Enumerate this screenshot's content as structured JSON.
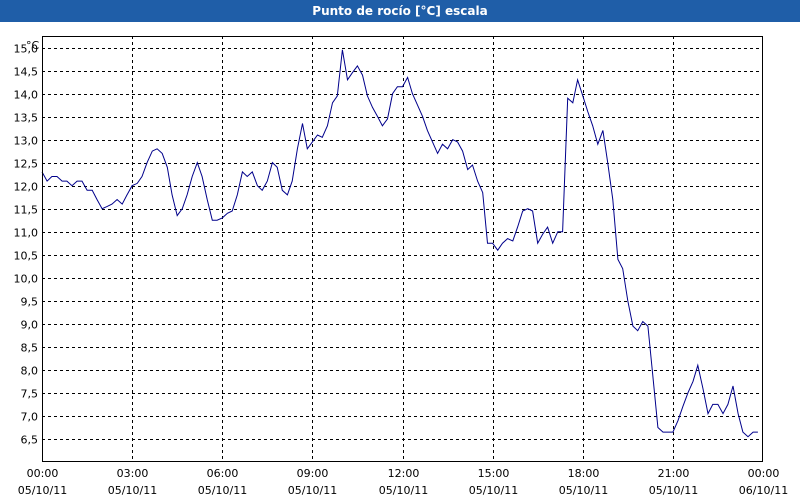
{
  "window": {
    "title": "Punto de rocío [°C] escala"
  },
  "chart_data": {
    "type": "line",
    "title": "Punto de rocío [°C] escala",
    "ylabel": "°C",
    "xlabel": "",
    "ylim": [
      6.0,
      15.25
    ],
    "xlim": [
      0,
      24
    ],
    "grid": true,
    "yticks": [
      "6,5",
      "7,0",
      "7,5",
      "8,0",
      "8,5",
      "9,0",
      "9,5",
      "10,0",
      "10,5",
      "11,0",
      "11,5",
      "12,0",
      "12,5",
      "13,0",
      "13,5",
      "14,0",
      "14,5",
      "15,0"
    ],
    "xticks": [
      {
        "time": "00:00",
        "date": "05/10/11"
      },
      {
        "time": "03:00",
        "date": "05/10/11"
      },
      {
        "time": "06:00",
        "date": "05/10/11"
      },
      {
        "time": "09:00",
        "date": "05/10/11"
      },
      {
        "time": "12:00",
        "date": "05/10/11"
      },
      {
        "time": "15:00",
        "date": "05/10/11"
      },
      {
        "time": "18:00",
        "date": "05/10/11"
      },
      {
        "time": "21:00",
        "date": "05/10/11"
      },
      {
        "time": "00:00",
        "date": "06/10/11"
      }
    ],
    "series": [
      {
        "color": "#00008b",
        "x": [
          0.0,
          0.17,
          0.33,
          0.5,
          0.67,
          0.83,
          1.0,
          1.17,
          1.33,
          1.5,
          1.67,
          1.83,
          2.0,
          2.17,
          2.33,
          2.5,
          2.67,
          2.83,
          3.0,
          3.17,
          3.33,
          3.5,
          3.67,
          3.83,
          4.0,
          4.17,
          4.33,
          4.5,
          4.67,
          4.83,
          5.0,
          5.17,
          5.33,
          5.5,
          5.67,
          5.83,
          6.0,
          6.17,
          6.33,
          6.5,
          6.67,
          6.83,
          7.0,
          7.17,
          7.33,
          7.5,
          7.67,
          7.83,
          8.0,
          8.17,
          8.33,
          8.5,
          8.67,
          8.83,
          9.0,
          9.17,
          9.33,
          9.5,
          9.67,
          9.83,
          10.0,
          10.17,
          10.33,
          10.5,
          10.67,
          10.83,
          11.0,
          11.17,
          11.33,
          11.5,
          11.67,
          11.83,
          12.0,
          12.17,
          12.33,
          12.5,
          12.67,
          12.83,
          13.0,
          13.17,
          13.33,
          13.5,
          13.67,
          13.83,
          14.0,
          14.17,
          14.33,
          14.5,
          14.67,
          14.83,
          15.0,
          15.17,
          15.33,
          15.5,
          15.67,
          15.83,
          16.0,
          16.17,
          16.33,
          16.5,
          16.67,
          16.83,
          17.0,
          17.17,
          17.33,
          17.5,
          17.67,
          17.83,
          18.0,
          18.17,
          18.33,
          18.5,
          18.67,
          18.83,
          19.0,
          19.17,
          19.33,
          19.5,
          19.67,
          19.83,
          20.0,
          20.17,
          20.33,
          20.5,
          20.67,
          20.83,
          21.0,
          21.17,
          21.33,
          21.5,
          21.67,
          21.83,
          22.0,
          22.17,
          22.33,
          22.5,
          22.67,
          22.83,
          23.0,
          23.17,
          23.33,
          23.5,
          23.67,
          23.83
        ],
        "y": [
          12.3,
          12.1,
          12.2,
          12.2,
          12.1,
          12.1,
          12.0,
          12.1,
          12.1,
          11.9,
          11.9,
          11.7,
          11.5,
          11.55,
          11.6,
          11.7,
          11.6,
          11.8,
          12.0,
          12.05,
          12.2,
          12.5,
          12.75,
          12.8,
          12.7,
          12.4,
          11.8,
          11.35,
          11.5,
          11.8,
          12.2,
          12.5,
          12.2,
          11.7,
          11.25,
          11.25,
          11.3,
          11.4,
          11.45,
          11.8,
          12.3,
          12.2,
          12.3,
          12.0,
          11.9,
          12.1,
          12.5,
          12.4,
          11.9,
          11.8,
          12.1,
          12.8,
          13.35,
          12.8,
          12.95,
          13.1,
          13.05,
          13.3,
          13.8,
          13.95,
          14.95,
          14.3,
          14.45,
          14.6,
          14.4,
          13.95,
          13.7,
          13.5,
          13.3,
          13.45,
          14.0,
          14.15,
          14.15,
          14.35,
          14.0,
          13.75,
          13.5,
          13.2,
          12.95,
          12.7,
          12.9,
          12.8,
          13.0,
          12.95,
          12.75,
          12.35,
          12.45,
          12.1,
          11.85,
          10.75,
          10.75,
          10.6,
          10.75,
          10.85,
          10.8,
          11.1,
          11.45,
          11.5,
          11.45,
          10.75,
          10.95,
          11.1,
          10.75,
          11.0,
          11.0,
          13.9,
          13.8,
          14.3,
          13.95,
          13.6,
          13.3,
          12.9,
          13.2,
          12.5,
          11.7,
          10.4,
          10.2,
          9.5,
          8.95,
          8.85,
          9.05,
          8.95,
          7.9,
          6.75,
          6.65,
          6.65,
          6.65,
          6.9,
          7.2,
          7.5,
          7.75,
          8.1,
          7.6,
          7.05,
          7.25,
          7.25,
          7.05,
          7.25,
          7.65,
          7.05,
          6.65,
          6.55,
          6.65,
          6.65
        ]
      }
    ]
  }
}
